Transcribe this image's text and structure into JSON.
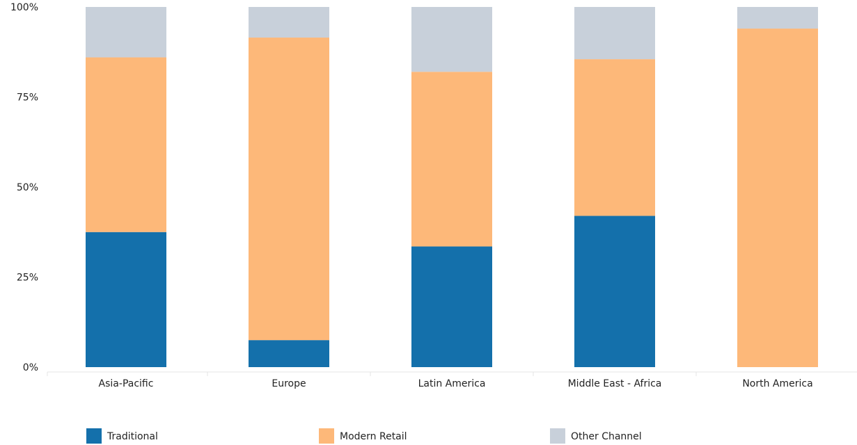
{
  "chart_data": {
    "type": "bar",
    "stacked": true,
    "normalized_percent": true,
    "categories": [
      "Asia-Pacific",
      "Europe",
      "Latin America",
      "Middle East - Africa",
      "North America"
    ],
    "series": [
      {
        "name": "Traditional",
        "color": "#1470ab",
        "values": [
          37.5,
          7.5,
          33.5,
          42.0,
          0.0
        ]
      },
      {
        "name": "Modern Retail",
        "color": "#fdb879",
        "values": [
          48.5,
          84.0,
          48.5,
          43.5,
          94.0
        ]
      },
      {
        "name": "Other Channel",
        "color": "#c8d0da",
        "values": [
          14.0,
          8.5,
          18.0,
          14.5,
          6.0
        ]
      }
    ],
    "y_ticks": [
      "0%",
      "25%",
      "50%",
      "75%",
      "100%"
    ],
    "ylim": [
      0,
      100
    ],
    "grid": false,
    "legend_position": "bottom"
  }
}
